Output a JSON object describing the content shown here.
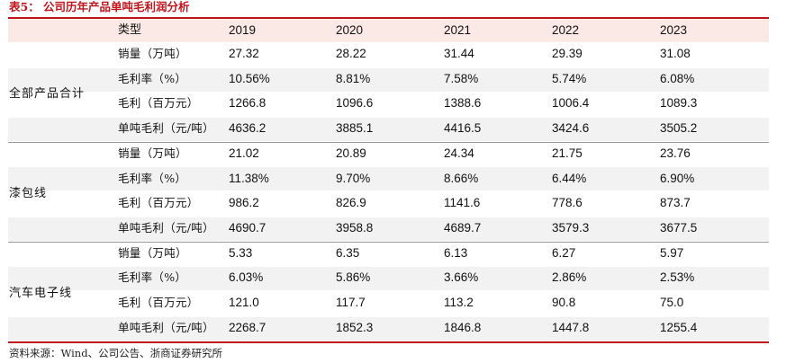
{
  "caption": "表5：  公司历年产品单吨毛利润分析",
  "header": {
    "label": "类型",
    "years": [
      "2019",
      "2020",
      "2021",
      "2022",
      "2023"
    ]
  },
  "groups": [
    {
      "name": "全部产品合计",
      "rows": [
        {
          "metric": "销量（万吨）",
          "values": [
            "27.32",
            "28.22",
            "31.44",
            "29.39",
            "31.08"
          ]
        },
        {
          "metric": "毛利率（%）",
          "values": [
            "10.56%",
            "8.81%",
            "7.58%",
            "5.74%",
            "6.08%"
          ]
        },
        {
          "metric": "毛利（百万元）",
          "values": [
            "1266.8",
            "1096.6",
            "1388.6",
            "1006.4",
            "1089.3"
          ]
        },
        {
          "metric": "单吨毛利（元/吨）",
          "values": [
            "4636.2",
            "3885.1",
            "4416.5",
            "3424.6",
            "3505.2"
          ]
        }
      ]
    },
    {
      "name": "漆包线",
      "rows": [
        {
          "metric": "销量（万吨）",
          "values": [
            "21.02",
            "20.89",
            "24.34",
            "21.75",
            "23.76"
          ]
        },
        {
          "metric": "毛利率（%）",
          "values": [
            "11.38%",
            "9.70%",
            "8.66%",
            "6.44%",
            "6.90%"
          ]
        },
        {
          "metric": "毛利（百万元）",
          "values": [
            "986.2",
            "826.9",
            "1141.6",
            "778.6",
            "873.7"
          ]
        },
        {
          "metric": "单吨毛利（元/吨）",
          "values": [
            "4690.7",
            "3958.8",
            "4689.7",
            "3579.3",
            "3677.5"
          ]
        }
      ]
    },
    {
      "name": "汽车电子线",
      "rows": [
        {
          "metric": "销量（万吨）",
          "values": [
            "5.33",
            "6.35",
            "6.13",
            "6.27",
            "5.97"
          ]
        },
        {
          "metric": "毛利率（%）",
          "values": [
            "6.03%",
            "5.86%",
            "3.66%",
            "2.86%",
            "2.53%"
          ]
        },
        {
          "metric": "毛利（百万元）",
          "values": [
            "121.0",
            "117.7",
            "113.2",
            "90.8",
            "75.0"
          ]
        },
        {
          "metric": "单吨毛利（元/吨）",
          "values": [
            "2268.7",
            "1852.3",
            "1846.8",
            "1447.8",
            "1255.4"
          ]
        }
      ]
    }
  ],
  "source": "资料来源：Wind、公司公告、浙商证券研究所",
  "colors": {
    "accent": "#c0141b",
    "header_bg": "#fbe9e5",
    "band_bg": "#f2f2f2"
  }
}
